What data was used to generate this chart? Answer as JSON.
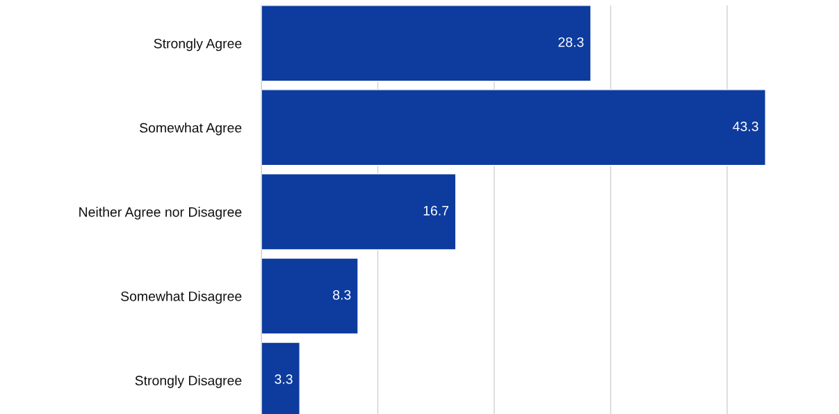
{
  "chart_data": {
    "type": "bar",
    "orientation": "horizontal",
    "categories": [
      "Strongly Agree",
      "Somewhat Agree",
      "Neither Agree nor Disagree",
      "Somewhat Disagree",
      "Strongly Disagree"
    ],
    "values": [
      28.3,
      43.3,
      16.7,
      8.3,
      3.3
    ],
    "color": "#0d3b9e",
    "xticks": [
      {
        "value": 0,
        "label": null
      },
      {
        "value": 10,
        "label": null
      },
      {
        "value": 20,
        "label": null
      },
      {
        "value": 30,
        "label": null
      },
      {
        "value": 40,
        "label": null
      }
    ],
    "grid": "x",
    "tick_labels": "y",
    "data_labels": true
  }
}
